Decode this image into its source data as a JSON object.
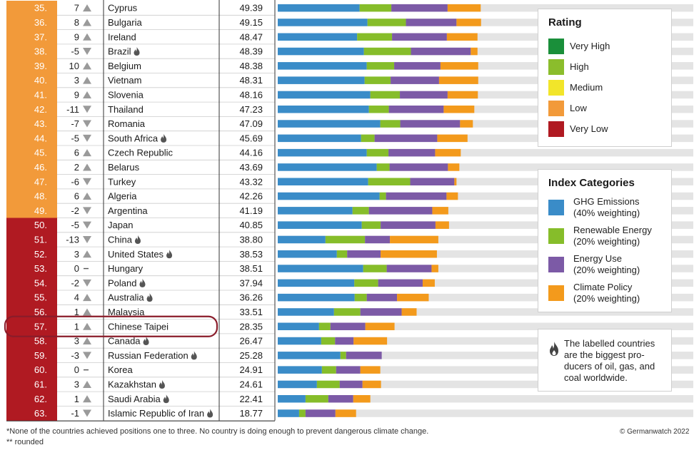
{
  "colors": {
    "very_high": "#1a8f3a",
    "high": "#8bbd2c",
    "medium": "#f2e52a",
    "low": "#f29a3a",
    "very_low": "#b01a22",
    "ghg": "#3a8cc8",
    "renewable": "#86bd2a",
    "energy": "#7c5aa6",
    "policy": "#f39a1c",
    "track": "#e4e4e4"
  },
  "chart_data": {
    "type": "bar",
    "stacked": true,
    "orientation": "horizontal",
    "rows": [
      {
        "rank": "35.",
        "change": "7",
        "dir": "up",
        "country": "Cyprus",
        "flame": false,
        "score": "49.39",
        "rating": "low",
        "parts": [
          23.0,
          8.9,
          15.8,
          9.3
        ]
      },
      {
        "rank": "36.",
        "change": "8",
        "dir": "up",
        "country": "Bulgaria",
        "flame": false,
        "score": "49.15",
        "rating": "low",
        "parts": [
          25.2,
          10.8,
          14.2,
          6.9
        ]
      },
      {
        "rank": "37.",
        "change": "9",
        "dir": "up",
        "country": "Ireland",
        "flame": false,
        "score": "48.47",
        "rating": "low",
        "parts": [
          22.3,
          9.8,
          15.4,
          8.6
        ]
      },
      {
        "rank": "38.",
        "change": "-5",
        "dir": "down",
        "country": "Brazil",
        "flame": true,
        "score": "48.39",
        "rating": "low",
        "parts": [
          24.2,
          13.2,
          16.8,
          1.9
        ]
      },
      {
        "rank": "39.",
        "change": "10",
        "dir": "up",
        "country": "Belgium",
        "flame": false,
        "score": "48.38",
        "rating": "low",
        "parts": [
          25.0,
          7.7,
          13.0,
          10.6
        ]
      },
      {
        "rank": "40.",
        "change": "3",
        "dir": "up",
        "country": "Vietnam",
        "flame": false,
        "score": "48.31",
        "rating": "low",
        "parts": [
          24.4,
          7.3,
          13.6,
          11.0
        ]
      },
      {
        "rank": "41.",
        "change": "9",
        "dir": "up",
        "country": "Slovenia",
        "flame": false,
        "score": "48.16",
        "rating": "low",
        "parts": [
          26.0,
          8.3,
          13.4,
          8.5
        ]
      },
      {
        "rank": "42.",
        "change": "-11",
        "dir": "down",
        "country": "Thailand",
        "flame": false,
        "score": "47.23",
        "rating": "low",
        "parts": [
          25.6,
          5.6,
          15.4,
          8.6
        ]
      },
      {
        "rank": "43.",
        "change": "-7",
        "dir": "down",
        "country": "Romania",
        "flame": false,
        "score": "47.09",
        "rating": "low",
        "parts": [
          28.8,
          5.6,
          16.8,
          3.6
        ]
      },
      {
        "rank": "44.",
        "change": "-5",
        "dir": "down",
        "country": "South Africa",
        "flame": true,
        "score": "45.69",
        "rating": "low",
        "parts": [
          23.4,
          3.8,
          17.6,
          8.5
        ]
      },
      {
        "rank": "45.",
        "change": "6",
        "dir": "up",
        "country": "Czech Republic",
        "flame": false,
        "score": "44.16",
        "rating": "low",
        "parts": [
          25.0,
          6.1,
          13.1,
          7.2
        ]
      },
      {
        "rank": "46.",
        "change": "2",
        "dir": "up",
        "country": "Belarus",
        "flame": false,
        "score": "43.69",
        "rating": "low",
        "parts": [
          27.8,
          3.6,
          16.4,
          3.2
        ]
      },
      {
        "rank": "47.",
        "change": "-6",
        "dir": "down",
        "country": "Turkey",
        "flame": false,
        "score": "43.32",
        "rating": "low",
        "parts": [
          25.4,
          11.8,
          12.4,
          0.6
        ]
      },
      {
        "rank": "48.",
        "change": "6",
        "dir": "up",
        "country": "Algeria",
        "flame": false,
        "score": "42.26",
        "rating": "low",
        "parts": [
          28.6,
          1.8,
          17.0,
          3.2
        ]
      },
      {
        "rank": "49.",
        "change": "-2",
        "dir": "down",
        "country": "Argentina",
        "flame": false,
        "score": "41.19",
        "rating": "low",
        "parts": [
          21.0,
          4.6,
          17.8,
          4.5
        ]
      },
      {
        "rank": "50.",
        "change": "-5",
        "dir": "down",
        "country": "Japan",
        "flame": false,
        "score": "40.85",
        "rating": "very_low",
        "parts": [
          23.6,
          5.3,
          15.4,
          3.8
        ]
      },
      {
        "rank": "51.",
        "change": "-13",
        "dir": "down",
        "country": "China",
        "flame": true,
        "score": "38.80",
        "rating": "very_low",
        "parts": [
          13.4,
          11.1,
          7.0,
          13.6
        ]
      },
      {
        "rank": "52.",
        "change": "3",
        "dir": "up",
        "country": "United States",
        "flame": true,
        "score": "38.53",
        "rating": "very_low",
        "parts": [
          16.6,
          2.9,
          9.4,
          15.8
        ]
      },
      {
        "rank": "53.",
        "change": "0",
        "dir": "none",
        "country": "Hungary",
        "flame": false,
        "score": "38.51",
        "rating": "very_low",
        "parts": [
          24.0,
          6.6,
          12.6,
          1.9
        ]
      },
      {
        "rank": "54.",
        "change": "-2",
        "dir": "down",
        "country": "Poland",
        "flame": true,
        "score": "37.94",
        "rating": "very_low",
        "parts": [
          21.5,
          6.7,
          12.5,
          3.4
        ]
      },
      {
        "rank": "55.",
        "change": "4",
        "dir": "up",
        "country": "Australia",
        "flame": true,
        "score": "36.26",
        "rating": "very_low",
        "parts": [
          21.6,
          3.4,
          8.5,
          8.9
        ]
      },
      {
        "rank": "56.",
        "change": "1",
        "dir": "up",
        "country": "Malaysia",
        "flame": false,
        "score": "33.51",
        "rating": "very_low",
        "parts": [
          15.8,
          7.4,
          11.6,
          4.2
        ]
      },
      {
        "rank": "57.",
        "change": "1",
        "dir": "up",
        "country": "Chinese Taipei",
        "flame": false,
        "score": "28.35",
        "rating": "very_low",
        "parts": [
          11.6,
          3.2,
          9.8,
          8.2
        ],
        "highlighted": true
      },
      {
        "rank": "58.",
        "change": "3",
        "dir": "up",
        "country": "Canada",
        "flame": true,
        "score": "26.47",
        "rating": "very_low",
        "parts": [
          12.2,
          3.9,
          5.2,
          9.4
        ]
      },
      {
        "rank": "59.",
        "change": "-3",
        "dir": "down",
        "country": "Russian Federation",
        "flame": true,
        "score": "25.28",
        "rating": "very_low",
        "parts": [
          17.6,
          1.6,
          10.0,
          0
        ]
      },
      {
        "rank": "60.",
        "change": "0",
        "dir": "none",
        "country": "Korea",
        "flame": false,
        "score": "24.91",
        "rating": "very_low",
        "parts": [
          12.4,
          4.0,
          6.8,
          5.6
        ]
      },
      {
        "rank": "61.",
        "change": "3",
        "dir": "up",
        "country": "Kazakhstan",
        "flame": true,
        "score": "24.61",
        "rating": "very_low",
        "parts": [
          11.0,
          6.4,
          6.4,
          5.2
        ]
      },
      {
        "rank": "62.",
        "change": "1",
        "dir": "up",
        "country": "Saudi Arabia",
        "flame": true,
        "score": "22.41",
        "rating": "very_low",
        "parts": [
          7.8,
          6.4,
          7.0,
          4.8
        ]
      },
      {
        "rank": "63.",
        "change": "-1",
        "dir": "down",
        "country": "Islamic Republic of Iran",
        "flame": true,
        "score": "18.77",
        "rating": "very_low",
        "parts": [
          6.0,
          1.8,
          8.4,
          5.8
        ]
      }
    ],
    "scale_max": 116.7
  },
  "rating_legend": {
    "title": "Rating",
    "items": [
      {
        "key": "very_high",
        "label": "Very High"
      },
      {
        "key": "high",
        "label": "High"
      },
      {
        "key": "medium",
        "label": "Medium"
      },
      {
        "key": "low",
        "label": "Low"
      },
      {
        "key": "very_low",
        "label": "Very Low"
      }
    ]
  },
  "category_legend": {
    "title": "Index Categories",
    "items": [
      {
        "key": "ghg",
        "line1": "GHG Emissions",
        "line2": "(40% weighting)"
      },
      {
        "key": "renewable",
        "line1": "Renewable Energy",
        "line2": "(20% weighting)"
      },
      {
        "key": "energy",
        "line1": "Energy Use",
        "line2": "(20% weighting)"
      },
      {
        "key": "policy",
        "line1": "Climate Policy",
        "line2": "(20% weighting)"
      }
    ]
  },
  "note": {
    "lines": [
      "The labelled countries",
      "are the biggest pro-",
      "ducers of oil, gas, and",
      "coal worldwide."
    ]
  },
  "footer": {
    "note1": "*None of the countries achieved positions one to three. No country is doing enough to prevent dangerous climate change.",
    "note2": "** rounded",
    "credit": "© Germanwatch 2022"
  }
}
